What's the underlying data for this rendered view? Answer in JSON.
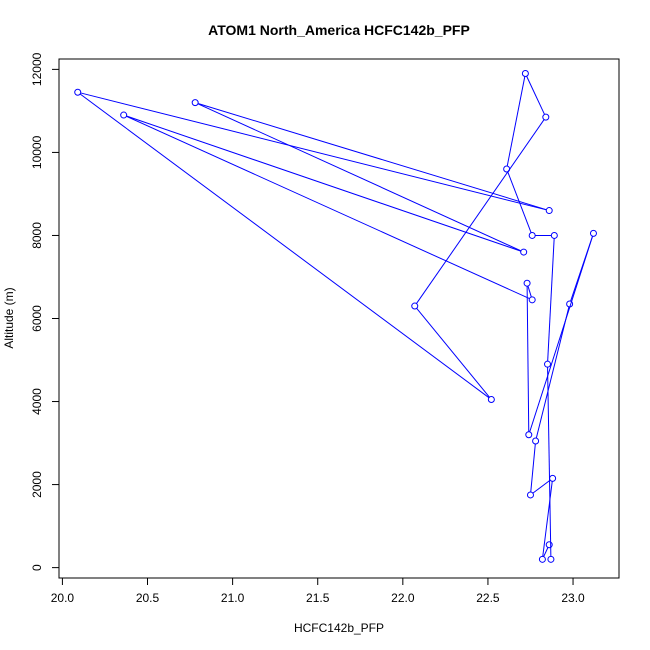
{
  "chart_data": {
    "type": "line",
    "title": "ATOM1 North_America HCFC142b_PFP",
    "xlabel": "HCFC142b_PFP",
    "ylabel": "Altitude (m)",
    "xlim": [
      19.98,
      23.27
    ],
    "ylim": [
      -250,
      12250
    ],
    "xticks": [
      "20.0",
      "20.5",
      "21.0",
      "21.5",
      "22.0",
      "22.5",
      "23.0"
    ],
    "yticks": [
      "0",
      "2000",
      "4000",
      "6000",
      "8000",
      "10000",
      "12000"
    ],
    "grid": false,
    "legend": "none",
    "series": [
      {
        "color": "#0000ff",
        "marker": "open-circle",
        "x": [
          22.86,
          22.82,
          22.88,
          22.75,
          22.78,
          22.98,
          23.12,
          22.74,
          22.73,
          22.76,
          20.36,
          22.71,
          20.78,
          22.86,
          20.09,
          22.52,
          22.07,
          22.84,
          22.72,
          22.61,
          22.76,
          22.89,
          22.85,
          22.87
        ],
        "y": [
          550,
          200,
          2150,
          1750,
          3050,
          6350,
          8050,
          3200,
          6850,
          6450,
          10900,
          7600,
          11200,
          8600,
          11450,
          4050,
          6300,
          10850,
          11900,
          9600,
          8000,
          8000,
          4900,
          200
        ]
      }
    ]
  }
}
